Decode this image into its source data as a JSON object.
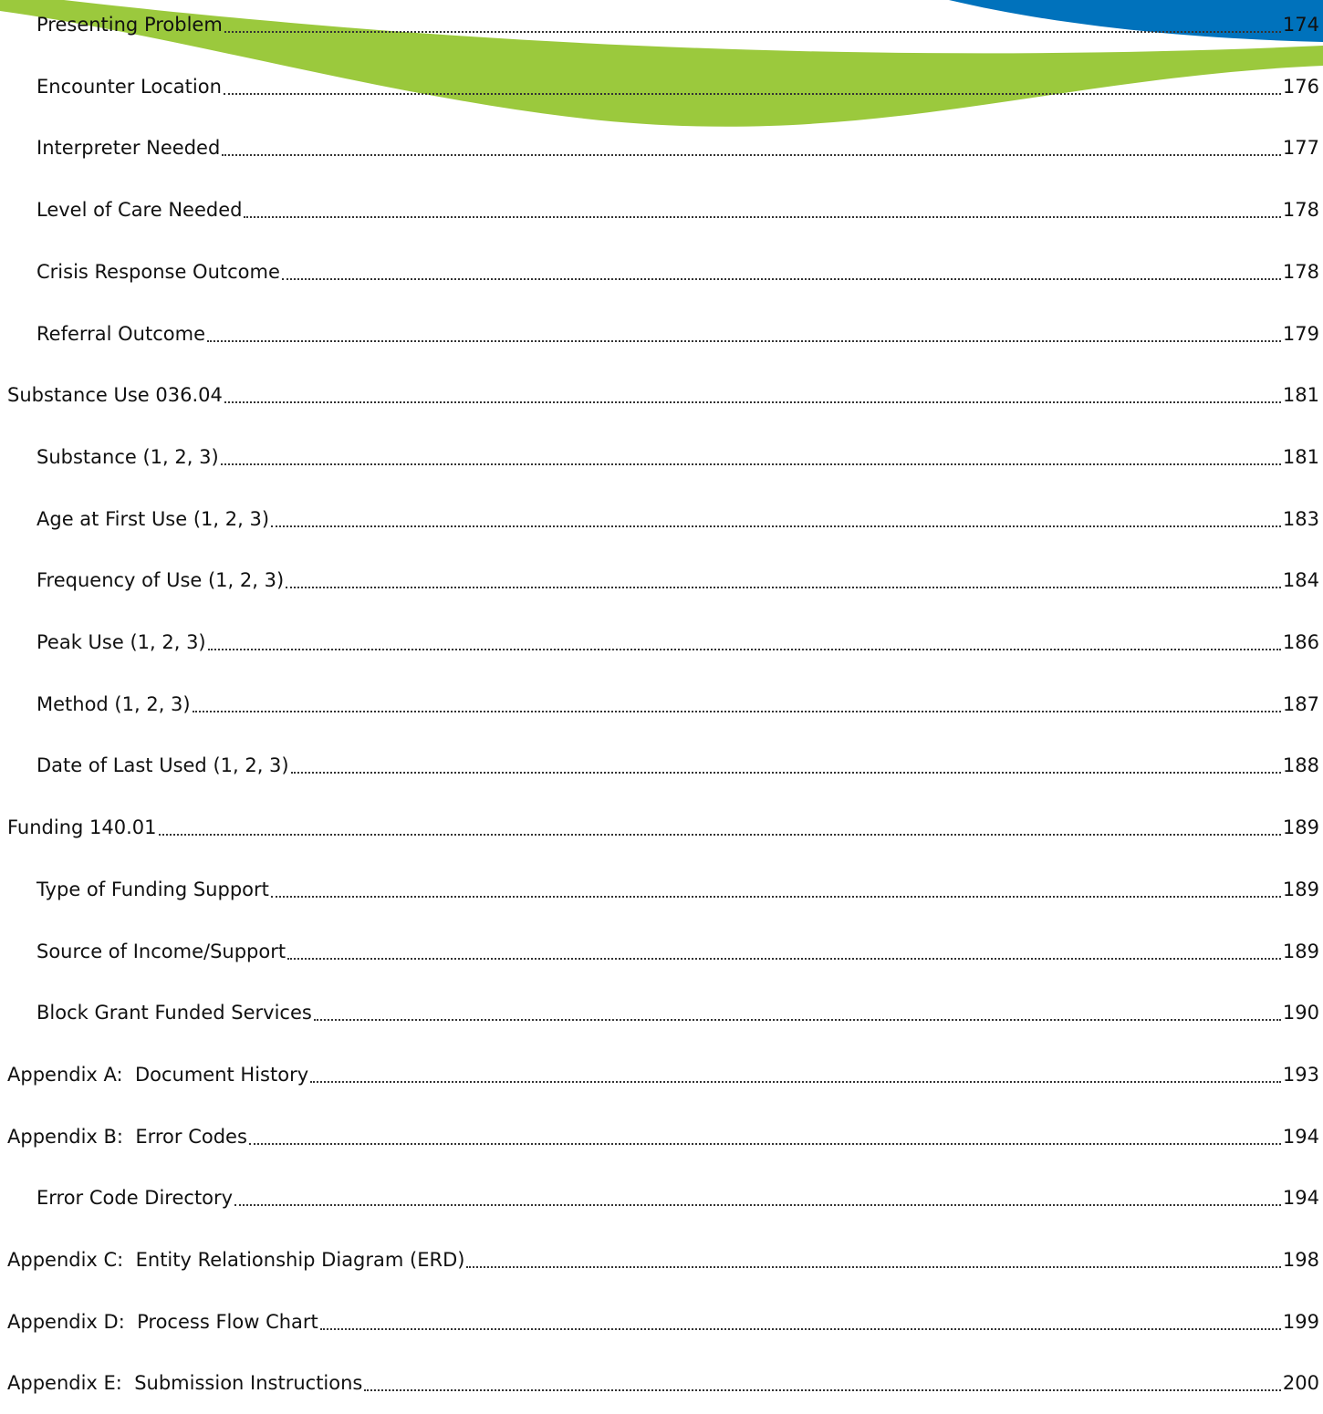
{
  "toc": [
    {
      "children": [
        {
          "title": "Presenting Problem",
          "page": "174"
        },
        {
          "title": "Encounter Location",
          "page": "176"
        },
        {
          "title": "Interpreter Needed",
          "page": "177"
        },
        {
          "title": "Level of Care Needed",
          "page": "178"
        },
        {
          "title": "Crisis Response Outcome",
          "page": "178"
        },
        {
          "title": "Referral Outcome",
          "page": "179"
        }
      ]
    },
    {
      "title": "Substance Use 036.04",
      "page": "181",
      "children": [
        {
          "title": "Substance (1, 2, 3)",
          "page": "181"
        },
        {
          "title": "Age at First Use (1, 2, 3)",
          "page": "183"
        },
        {
          "title": "Frequency of Use (1, 2, 3)",
          "page": "184"
        },
        {
          "title": "Peak Use (1, 2, 3)",
          "page": "186"
        },
        {
          "title": "Method (1, 2, 3)",
          "page": "187"
        },
        {
          "title": "Date of Last Used (1, 2, 3)",
          "page": "188"
        }
      ]
    },
    {
      "title": "Funding 140.01",
      "page": "189",
      "children": [
        {
          "title": "Type of Funding Support",
          "page": "189"
        },
        {
          "title": "Source of Income/Support",
          "page": "189"
        },
        {
          "title": "Block Grant Funded Services",
          "page": "190"
        }
      ]
    },
    {
      "title": "Appendix A:  Document History",
      "page": "193",
      "children": []
    },
    {
      "title": "Appendix B:  Error Codes",
      "page": "194",
      "children": [
        {
          "title": "Error Code Directory",
          "page": "194"
        }
      ]
    },
    {
      "title": "Appendix C:  Entity Relationship Diagram (ERD)",
      "page": "198",
      "children": []
    },
    {
      "title": "Appendix D:  Process Flow Chart",
      "page": "199",
      "children": []
    },
    {
      "title": "Appendix E:  Submission Instructions",
      "page": "200",
      "children": []
    }
  ]
}
